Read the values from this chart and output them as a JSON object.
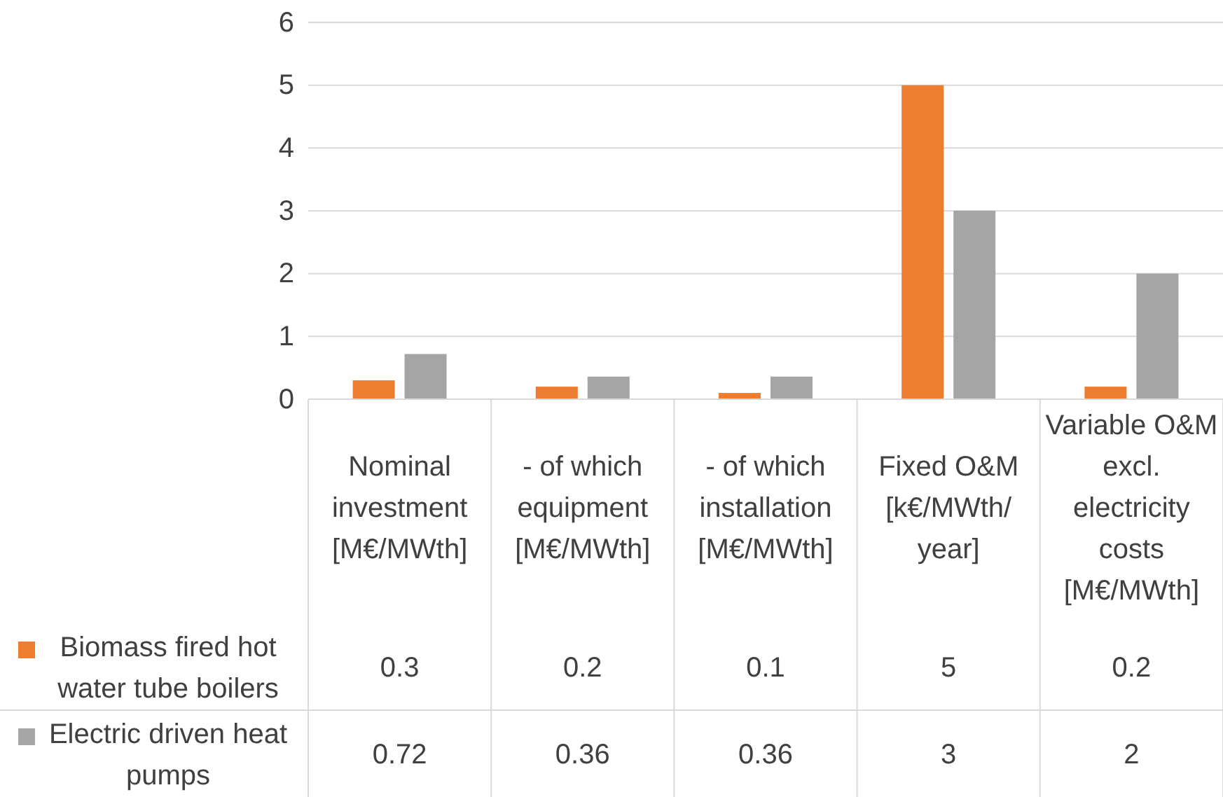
{
  "chart_data": {
    "type": "bar",
    "categories": [
      "Nominal investment [M€/MWth]",
      "- of which equipment [M€/MWth]",
      "- of which installation [M€/MWth]",
      "Fixed O&M [k€/MWth/ year]",
      "Variable O&M excl. electricity costs [M€/MWth]"
    ],
    "series": [
      {
        "name": "Biomass fired hot water tube boilers",
        "color": "#ed7d31",
        "values": [
          0.3,
          0.2,
          0.1,
          5,
          0.2
        ]
      },
      {
        "name": "Electric driven heat pumps",
        "color": "#a5a5a5",
        "values": [
          0.72,
          0.36,
          0.36,
          3,
          2
        ]
      }
    ],
    "ylim": [
      0,
      6
    ],
    "yticks": [
      0,
      1,
      2,
      3,
      4,
      5,
      6
    ],
    "grid": "y",
    "legend": "bottom",
    "data_labels": true
  }
}
